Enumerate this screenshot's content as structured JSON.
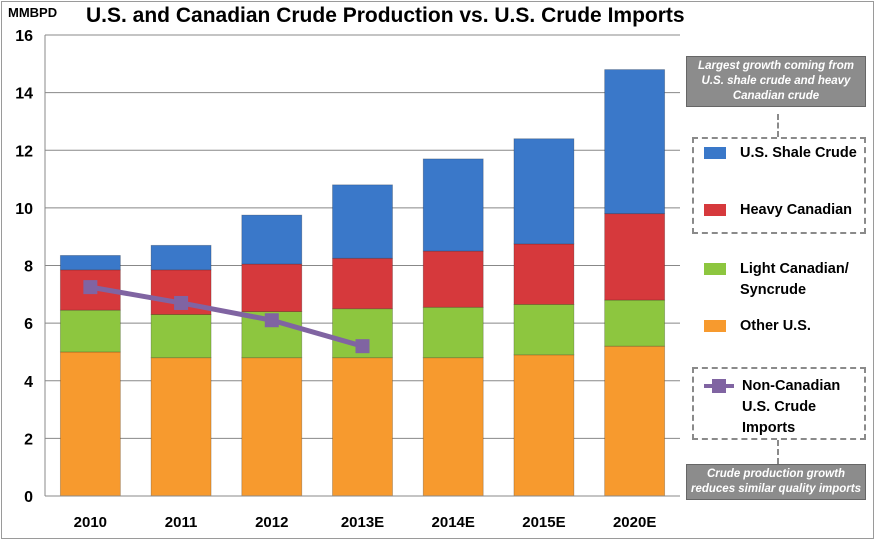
{
  "title": "U.S. and Canadian Crude Production vs. U.S. Crude Imports",
  "y_unit": "MMBPD",
  "colors": {
    "other_us": "#f79a2e",
    "light_canadian": "#8dc63f",
    "heavy_canadian": "#d6393c",
    "us_shale": "#3a78c9",
    "imports_line": "#8064a2"
  },
  "legend": {
    "us_shale": "U.S. Shale Crude",
    "heavy_canadian": "Heavy Canadian",
    "light_canadian": "Light Canadian/\nSyncrude",
    "other_us": "Other U.S.",
    "imports": "Non-Canadian\nU.S. Crude\nImports"
  },
  "callouts": {
    "top": "Largest growth coming from U.S. shale crude and heavy Canadian crude",
    "bottom": "Crude production growth reduces similar quality imports"
  },
  "chart_data": {
    "type": "bar",
    "stacked": true,
    "title": "U.S. and Canadian Crude Production vs. U.S. Crude Imports",
    "ylabel": "MMBPD",
    "xlabel": "",
    "ylim": [
      0,
      16
    ],
    "yticks": [
      0,
      2,
      4,
      6,
      8,
      10,
      12,
      14,
      16
    ],
    "grid": true,
    "legend_position": "right",
    "categories": [
      "2010",
      "2011",
      "2012",
      "2013E",
      "2014E",
      "2015E",
      "2020E"
    ],
    "series": [
      {
        "name": "Other U.S.",
        "values": [
          5.0,
          4.8,
          4.8,
          4.8,
          4.8,
          4.9,
          5.2
        ]
      },
      {
        "name": "Light Canadian/ Syncrude",
        "values": [
          1.45,
          1.5,
          1.6,
          1.7,
          1.75,
          1.75,
          1.6
        ]
      },
      {
        "name": "Heavy Canadian",
        "values": [
          1.4,
          1.55,
          1.65,
          1.75,
          1.95,
          2.1,
          3.0
        ]
      },
      {
        "name": "U.S. Shale Crude",
        "values": [
          0.5,
          0.85,
          1.7,
          2.55,
          3.2,
          3.65,
          5.0
        ]
      }
    ],
    "line_series": {
      "name": "Non-Canadian U.S. Crude Imports",
      "categories": [
        "2010",
        "2011",
        "2012",
        "2013E"
      ],
      "values": [
        7.25,
        6.7,
        6.1,
        5.2
      ]
    }
  }
}
